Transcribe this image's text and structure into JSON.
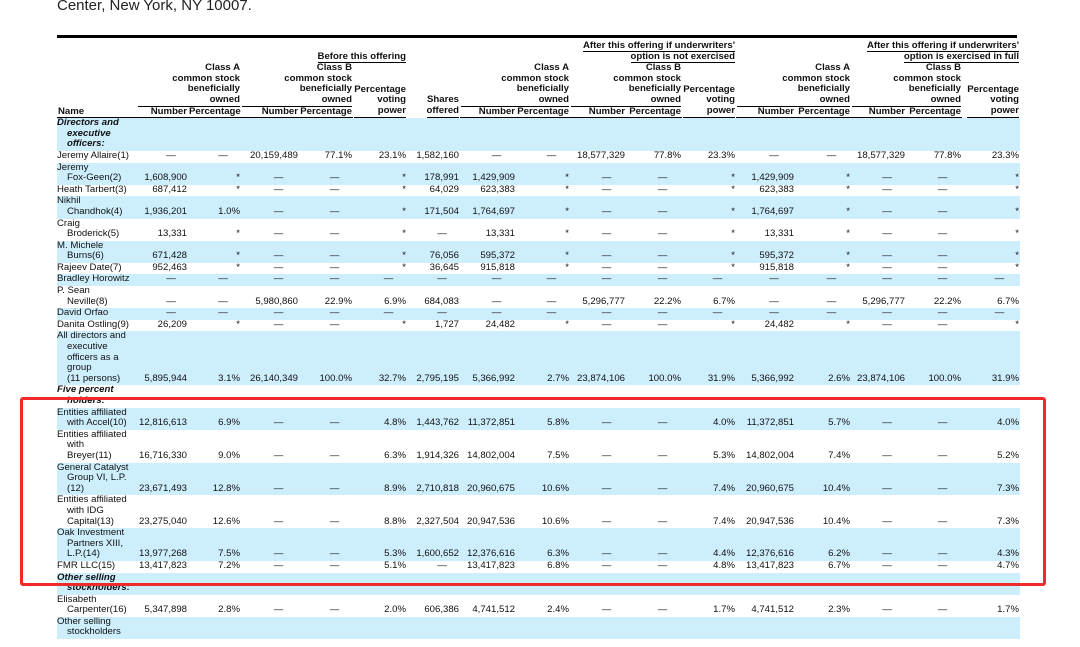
{
  "title": "Center, New York, NY 10007.",
  "header": {
    "groups": [
      "Before this offering",
      "After this offering if underwriters'\noption is not exercised",
      "After this offering if underwriters'\noption is exercised in full"
    ],
    "class_a": "Class A\ncommon stock\nbeneficially\nowned",
    "class_b": "Class B\ncommon stock\nbeneficially\nowned",
    "voting": "Percentage\nvoting\npower",
    "shares_offered": "Shares\noffered",
    "name": "Name",
    "number": "Number",
    "percentage": "Percentage"
  },
  "highlight_color": "#ee2a2a",
  "row_color": "#cdeefd",
  "rows": [
    {
      "section": true,
      "name": "Directors and\nexecutive\nofficers:",
      "values": []
    },
    {
      "name": "Jeremy Allaire(1)",
      "values": [
        "—",
        "—",
        "20,159,489",
        "77.1%",
        "23.1%",
        "1,582,160",
        "—",
        "—",
        "18,577,329",
        "77.8%",
        "23.3%",
        "—",
        "—",
        "18,577,329",
        "77.8%",
        "23.3%"
      ]
    },
    {
      "name": "Jeremy\nFox-Geen(2)",
      "values": [
        "1,608,900",
        "*",
        "—",
        "—",
        "*",
        "178,991",
        "1,429,909",
        "*",
        "—",
        "—",
        "*",
        "1,429,909",
        "*",
        "—",
        "—",
        "*"
      ]
    },
    {
      "name": "Heath Tarbert(3)",
      "values": [
        "687,412",
        "*",
        "—",
        "—",
        "*",
        "64,029",
        "623,383",
        "*",
        "—",
        "—",
        "*",
        "623,383",
        "*",
        "—",
        "—",
        "*"
      ]
    },
    {
      "name": "Nikhil\nChandhok(4)",
      "values": [
        "1,936,201",
        "1.0%",
        "—",
        "—",
        "*",
        "171,504",
        "1,764,697",
        "*",
        "—",
        "—",
        "*",
        "1,764,697",
        "*",
        "—",
        "—",
        "*"
      ]
    },
    {
      "name": "Craig\nBroderick(5)",
      "values": [
        "13,331",
        "*",
        "—",
        "—",
        "*",
        "—",
        "13,331",
        "*",
        "—",
        "—",
        "*",
        "13,331",
        "*",
        "—",
        "—",
        "*"
      ]
    },
    {
      "name": "M. Michele\nBurns(6)",
      "values": [
        "671,428",
        "*",
        "—",
        "—",
        "*",
        "76,056",
        "595,372",
        "*",
        "—",
        "—",
        "*",
        "595,372",
        "*",
        "—",
        "—",
        "*"
      ]
    },
    {
      "name": "Rajeev Date(7)",
      "values": [
        "952,463",
        "*",
        "—",
        "—",
        "*",
        "36,645",
        "915,818",
        "*",
        "—",
        "—",
        "*",
        "915,818",
        "*",
        "—",
        "—",
        "*"
      ]
    },
    {
      "name": "Bradley Horowitz",
      "values": [
        "—",
        "—",
        "—",
        "—",
        "—",
        "—",
        "—",
        "—",
        "—",
        "—",
        "—",
        "—",
        "—",
        "—",
        "—",
        "—"
      ]
    },
    {
      "name": "P. Sean\nNeville(8)",
      "values": [
        "—",
        "—",
        "5,980,860",
        "22.9%",
        "6.9%",
        "684,083",
        "—",
        "—",
        "5,296,777",
        "22.2%",
        "6.7%",
        "—",
        "—",
        "5,296,777",
        "22.2%",
        "6.7%"
      ]
    },
    {
      "name": "David Orfao",
      "values": [
        "—",
        "—",
        "—",
        "—",
        "—",
        "—",
        "—",
        "—",
        "—",
        "—",
        "—",
        "—",
        "—",
        "—",
        "—",
        "—"
      ]
    },
    {
      "name": "Danita Ostling(9)",
      "values": [
        "26,209",
        "*",
        "—",
        "—",
        "*",
        "1,727",
        "24,482",
        "*",
        "—",
        "—",
        "*",
        "24,482",
        "*",
        "—",
        "—",
        "*"
      ]
    },
    {
      "name": "All directors and\nexecutive\nofficers as a\ngroup\n(11 persons)",
      "values": [
        "5,895,944",
        "3.1%",
        "26,140,349",
        "100.0%",
        "32.7%",
        "2,795,195",
        "5,366,992",
        "2.7%",
        "23,874,106",
        "100.0%",
        "31.9%",
        "5,366,992",
        "2.6%",
        "23,874,106",
        "100.0%",
        "31.9%"
      ]
    },
    {
      "section": true,
      "name": "Five percent\nholders:",
      "values": []
    },
    {
      "name": "Entities affiliated\nwith Accel(10)",
      "values": [
        "12,816,613",
        "6.9%",
        "—",
        "—",
        "4.8%",
        "1,443,762",
        "11,372,851",
        "5.8%",
        "—",
        "—",
        "4.0%",
        "11,372,851",
        "5.7%",
        "—",
        "—",
        "4.0%"
      ]
    },
    {
      "name": "Entities affiliated\nwith\nBreyer(11)",
      "values": [
        "16,716,330",
        "9.0%",
        "—",
        "—",
        "6.3%",
        "1,914,326",
        "14,802,004",
        "7.5%",
        "—",
        "—",
        "5.3%",
        "14,802,004",
        "7.4%",
        "—",
        "—",
        "5.2%"
      ]
    },
    {
      "name": "General Catalyst\nGroup VI, L.P.\n(12)",
      "values": [
        "23,671,493",
        "12.8%",
        "—",
        "—",
        "8.9%",
        "2,710,818",
        "20,960,675",
        "10.6%",
        "—",
        "—",
        "7.4%",
        "20,960,675",
        "10.4%",
        "—",
        "—",
        "7.3%"
      ]
    },
    {
      "name": "Entities affiliated\nwith IDG\nCapital(13)",
      "values": [
        "23,275,040",
        "12.6%",
        "—",
        "—",
        "8.8%",
        "2,327,504",
        "20,947,536",
        "10.6%",
        "—",
        "—",
        "7.4%",
        "20,947,536",
        "10.4%",
        "—",
        "—",
        "7.3%"
      ]
    },
    {
      "name": "Oak Investment\nPartners XIII,\nL.P.(14)",
      "values": [
        "13,977,268",
        "7.5%",
        "—",
        "—",
        "5.3%",
        "1,600,652",
        "12,376,616",
        "6.3%",
        "—",
        "—",
        "4.4%",
        "12,376,616",
        "6.2%",
        "—",
        "—",
        "4.3%"
      ]
    },
    {
      "name": "FMR LLC(15)",
      "values": [
        "13,417,823",
        "7.2%",
        "—",
        "—",
        "5.1%",
        "—",
        "13,417,823",
        "6.8%",
        "—",
        "—",
        "4.8%",
        "13,417,823",
        "6.7%",
        "—",
        "—",
        "4.7%"
      ]
    },
    {
      "section": true,
      "name": "Other selling\nstockholders:",
      "values": []
    },
    {
      "name": "Elisabeth\nCarpenter(16)",
      "values": [
        "5,347,898",
        "2.8%",
        "—",
        "—",
        "2.0%",
        "606,386",
        "4,741,512",
        "2.4%",
        "—",
        "—",
        "1.7%",
        "4,741,512",
        "2.3%",
        "—",
        "—",
        "1.7%"
      ]
    },
    {
      "name": "Other selling\nstockholders",
      "values": []
    }
  ]
}
